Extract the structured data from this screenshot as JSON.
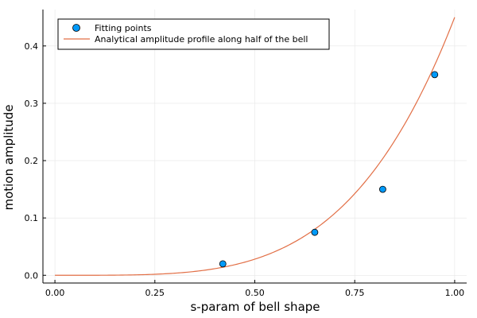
{
  "chart_data": {
    "type": "scatter",
    "xlabel": "s-param of bell shape",
    "ylabel": "motion amplitude",
    "xlim": [
      -0.03,
      1.03
    ],
    "ylim": [
      -0.0135,
      0.4635
    ],
    "xticks": [
      0.0,
      0.25,
      0.5,
      0.75,
      1.0
    ],
    "xtick_labels": [
      "0.00",
      "0.25",
      "0.50",
      "0.75",
      "1.00"
    ],
    "yticks": [
      0.0,
      0.1,
      0.2,
      0.3,
      0.4
    ],
    "ytick_labels": [
      "0.0",
      "0.1",
      "0.2",
      "0.3",
      "0.4"
    ],
    "grid": true,
    "legend_position": "top-left",
    "series": [
      {
        "name": "Fitting points",
        "kind": "scatter",
        "color": "#009AFA",
        "x": [
          0.42,
          0.65,
          0.82,
          0.95
        ],
        "y": [
          0.02,
          0.075,
          0.15,
          0.35
        ]
      },
      {
        "name": "Analytical amplitude profile along half of the bell",
        "kind": "line",
        "color": "#E26F46",
        "curve": "y = 0.45 * x^4",
        "x": [
          0.0,
          0.1,
          0.2,
          0.25,
          0.3,
          0.4,
          0.5,
          0.6,
          0.7,
          0.75,
          0.8,
          0.9,
          1.0
        ],
        "y": [
          0.0,
          0.0,
          0.0007,
          0.0018,
          0.0036,
          0.0115,
          0.0281,
          0.0583,
          0.108,
          0.1424,
          0.1843,
          0.2952,
          0.45
        ]
      }
    ]
  }
}
